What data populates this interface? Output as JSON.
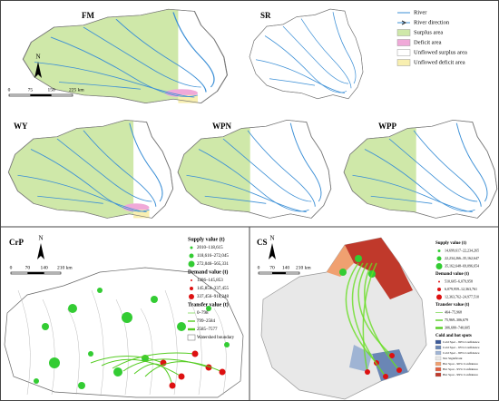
{
  "top": {
    "panels": [
      "FM",
      "SR",
      "WY",
      "WPN",
      "WPP"
    ],
    "compass": "N",
    "scale": [
      "0",
      "75",
      "150",
      "225 km"
    ],
    "legend": [
      "River",
      "River direction",
      "Surplus area",
      "Deficit area",
      "Unflowed surplus area",
      "Unflowed deficit area"
    ]
  },
  "crp": {
    "label": "CrP",
    "compass": "N",
    "scale": [
      "0",
      "70",
      "140",
      "210 km"
    ],
    "supply": {
      "title": "Supply value (t)",
      "items": [
        "2010–118,615",
        "118,616–272,045",
        "272,046–565,331"
      ]
    },
    "demand": {
      "title": "Demand value (t)",
      "items": [
        "1286–145,853",
        "145,854–337,455",
        "337,456–918,248"
      ]
    },
    "transfer": {
      "title": "Transfer value (t)",
      "items": [
        "0–798",
        "799–2584",
        "2585–7577"
      ]
    },
    "boundary": "Watershed boundary"
  },
  "cs": {
    "label": "CS",
    "compass": "N",
    "scale": [
      "0",
      "70",
      "140",
      "210 km"
    ],
    "supply": {
      "title": "Supply value (t)",
      "items": [
        "14,699,617–22,234,265",
        "22,234,266–35,162,647",
        "35,162,648–69,096,654"
      ]
    },
    "demand": {
      "title": "Demand value (t)",
      "items": [
        "510,605–6,079,958",
        "6,079,959–12,363,761",
        "12,363,762–24,977,510"
      ]
    },
    "transfer": {
      "title": "Transfer value (t)",
      "items": [
        "464–75,968",
        "75,969–306,679",
        "306,680–740,605"
      ]
    },
    "spots": {
      "title": "Cold and hot spots",
      "items": [
        "Cold Spot - 99% Confidence",
        "Cold Spot - 95% Confidence",
        "Cold Spot - 90% Confidence",
        "Not Significant",
        "Hot Spot - 90% Confidence",
        "Hot Spot - 95% Confidence",
        "Hot Spot - 99% Confidence"
      ]
    }
  }
}
